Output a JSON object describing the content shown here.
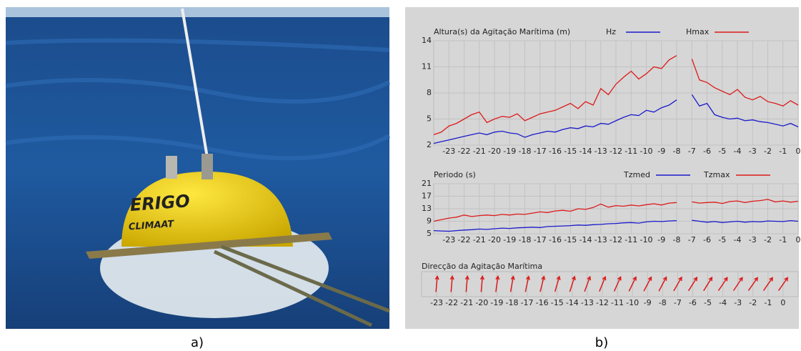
{
  "panels": {
    "a": {
      "caption": "a)",
      "photo_text": [
        "ERIGO",
        "CLIMAAT"
      ]
    },
    "b": {
      "caption": "b)"
    }
  },
  "chart_data": [
    {
      "type": "line",
      "title": "Altura(s) da Agitação Marítima (m)",
      "x": [
        -24,
        -23.5,
        -23,
        -22.5,
        -22,
        -21.5,
        -21,
        -20.5,
        -20,
        -19.5,
        -19,
        -18.5,
        -18,
        -17.5,
        -17,
        -16.5,
        -16,
        -15.5,
        -15,
        -14.5,
        -14,
        -13.5,
        -13,
        -12.5,
        -12,
        -11.5,
        -11,
        -10.5,
        -10,
        -9.5,
        -9,
        -8.5,
        -8,
        -7.5,
        -7,
        -6.5,
        -6,
        -5.5,
        -5,
        -4.5,
        -4,
        -3.5,
        -3,
        -2.5,
        -2,
        -1.5,
        -1,
        -0.5,
        0
      ],
      "series": [
        {
          "name": "Hz",
          "color": "#1a1acc",
          "values": [
            2.2,
            2.4,
            2.6,
            2.8,
            3.0,
            3.2,
            3.4,
            3.2,
            3.5,
            3.6,
            3.4,
            3.3,
            2.9,
            3.2,
            3.4,
            3.6,
            3.5,
            3.8,
            4.0,
            3.9,
            4.2,
            4.1,
            4.5,
            4.4,
            4.8,
            5.2,
            5.5,
            5.4,
            6.0,
            5.8,
            6.3,
            6.6,
            7.2,
            null,
            7.8,
            6.5,
            6.8,
            5.5,
            5.2,
            5.0,
            5.1,
            4.8,
            4.9,
            4.7,
            4.6,
            4.4,
            4.2,
            4.5,
            4.1
          ]
        },
        {
          "name": "Hmax",
          "color": "#dd1a1a",
          "values": [
            3.2,
            3.5,
            4.2,
            4.5,
            5.0,
            5.5,
            5.8,
            4.6,
            5.0,
            5.3,
            5.2,
            5.6,
            4.8,
            5.2,
            5.6,
            5.8,
            6.0,
            6.4,
            6.8,
            6.2,
            7.0,
            6.6,
            8.5,
            7.8,
            9.0,
            9.8,
            10.5,
            9.6,
            10.2,
            11.0,
            10.8,
            11.8,
            12.3,
            null,
            11.9,
            9.5,
            9.2,
            8.6,
            8.2,
            7.8,
            8.4,
            7.5,
            7.2,
            7.6,
            7.0,
            6.8,
            6.5,
            7.1,
            6.6
          ]
        }
      ],
      "xlim": [
        -24,
        0
      ],
      "xticks": [
        -23,
        -22,
        -21,
        -20,
        -19,
        -18,
        -17,
        -16,
        -15,
        -14,
        -13,
        -12,
        -11,
        -10,
        -9,
        -8,
        -7,
        -6,
        -5,
        -4,
        -3,
        -2,
        -1,
        0
      ],
      "ylim": [
        2,
        14
      ],
      "yticks": [
        2,
        5,
        8,
        11,
        14
      ],
      "grid": true
    },
    {
      "type": "line",
      "title": "Periodo (s)",
      "x": [
        -24,
        -23.5,
        -23,
        -22.5,
        -22,
        -21.5,
        -21,
        -20.5,
        -20,
        -19.5,
        -19,
        -18.5,
        -18,
        -17.5,
        -17,
        -16.5,
        -16,
        -15.5,
        -15,
        -14.5,
        -14,
        -13.5,
        -13,
        -12.5,
        -12,
        -11.5,
        -11,
        -10.5,
        -10,
        -9.5,
        -9,
        -8.5,
        -8,
        -7.5,
        -7,
        -6.5,
        -6,
        -5.5,
        -5,
        -4.5,
        -4,
        -3.5,
        -3,
        -2.5,
        -2,
        -1.5,
        -1,
        -0.5,
        0
      ],
      "series": [
        {
          "name": "Tzmed",
          "color": "#1a1acc",
          "values": [
            6.0,
            5.9,
            5.8,
            6.0,
            6.2,
            6.3,
            6.5,
            6.4,
            6.6,
            6.8,
            6.7,
            6.9,
            7.0,
            7.1,
            7.0,
            7.3,
            7.4,
            7.5,
            7.6,
            7.8,
            7.7,
            7.9,
            8.0,
            8.2,
            8.3,
            8.5,
            8.6,
            8.4,
            8.8,
            9.0,
            8.9,
            9.1,
            9.2,
            null,
            9.3,
            9.0,
            8.7,
            8.9,
            8.6,
            8.8,
            9.0,
            8.7,
            8.9,
            8.8,
            9.1,
            9.0,
            8.9,
            9.2,
            9.0
          ]
        },
        {
          "name": "Tzmax",
          "color": "#dd1a1a",
          "values": [
            9.0,
            9.5,
            10.0,
            10.3,
            11.0,
            10.5,
            10.8,
            11.0,
            10.8,
            11.2,
            11.0,
            11.3,
            11.2,
            11.6,
            12.0,
            11.8,
            12.3,
            12.5,
            12.2,
            13.0,
            12.8,
            13.4,
            14.5,
            13.5,
            14.0,
            13.8,
            14.2,
            13.9,
            14.3,
            14.6,
            14.2,
            14.8,
            15.0,
            null,
            15.2,
            14.8,
            15.0,
            15.1,
            14.7,
            15.3,
            15.5,
            15.0,
            15.4,
            15.6,
            16.0,
            15.2,
            15.5,
            15.1,
            15.4
          ]
        }
      ],
      "xlim": [
        -24,
        0
      ],
      "xticks": [
        -23,
        -22,
        -21,
        -20,
        -19,
        -18,
        -17,
        -16,
        -15,
        -14,
        -13,
        -12,
        -11,
        -10,
        -9,
        -8,
        -7,
        -6,
        -5,
        -4,
        -3,
        -2,
        -1,
        0
      ],
      "ylim": [
        5,
        21
      ],
      "yticks": [
        5,
        9,
        13,
        17,
        21
      ],
      "grid": true
    },
    {
      "type": "direction",
      "title": "Direcção da Agitação Marítima",
      "color": "#dd1a1a",
      "x": [
        -23,
        -22,
        -21,
        -20,
        -19,
        -18,
        -17,
        -16,
        -15,
        -14,
        -13,
        -12,
        -11,
        -10,
        -9,
        -8,
        -7,
        -6,
        -5,
        -4,
        -3,
        -2,
        -1,
        0
      ],
      "values": [
        5,
        5,
        5,
        5,
        8,
        10,
        12,
        14,
        16,
        18,
        20,
        22,
        24,
        26,
        28,
        28,
        30,
        32,
        32,
        34,
        34,
        35,
        35,
        35
      ],
      "xlim": [
        -24,
        1
      ],
      "xticks": [
        -23,
        -22,
        -21,
        -20,
        -19,
        -18,
        -17,
        -16,
        -15,
        -14,
        -13,
        -12,
        -11,
        -10,
        -9,
        -8,
        -7,
        -6,
        -5,
        -4,
        -3,
        -2,
        -1,
        0
      ],
      "grid": true
    }
  ]
}
